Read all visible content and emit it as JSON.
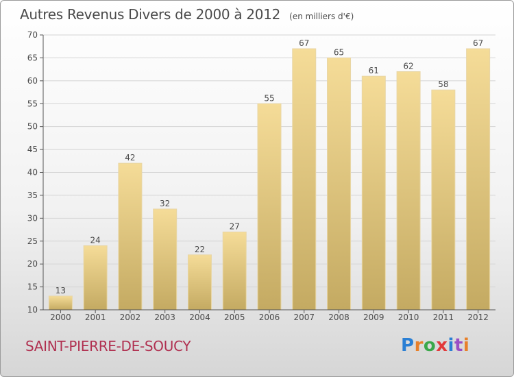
{
  "header": {
    "title": "Autres Revenus Divers de 2000 à 2012",
    "unit": "(en milliers d'€)"
  },
  "footer": {
    "location": "SAINT-PIERRE-DE-SOUCY",
    "brand": "Proxiti"
  },
  "colors": {
    "bar_light": "#f5dc98",
    "bar_dark": "#c4aa62",
    "text": "#4a4a4a",
    "location": "#b03050"
  },
  "chart_data": {
    "type": "bar",
    "categories": [
      "2000",
      "2001",
      "2002",
      "2003",
      "2004",
      "2005",
      "2006",
      "2007",
      "2008",
      "2009",
      "2010",
      "2011",
      "2012"
    ],
    "values": [
      13,
      24,
      42,
      32,
      22,
      27,
      55,
      67,
      65,
      61,
      62,
      58,
      67
    ],
    "ylim": [
      10,
      70
    ],
    "yticks": [
      10,
      15,
      20,
      25,
      30,
      35,
      40,
      45,
      50,
      55,
      60,
      65,
      70
    ],
    "grid": true
  }
}
